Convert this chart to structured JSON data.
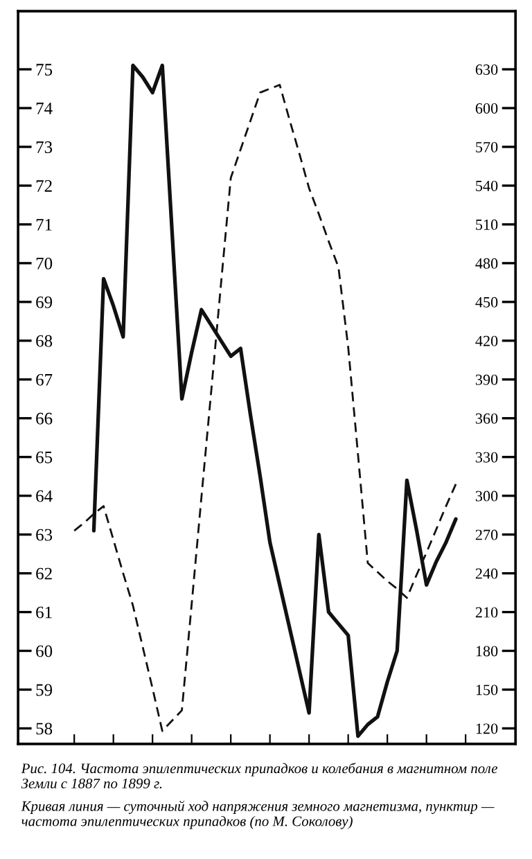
{
  "chart_data": {
    "type": "line",
    "title": "Рис. 104. Частота эпилептических припадков и колебания в магнитном поле Земли с 1887 по 1899 г.",
    "annotations": [
      "Кривая линия — суточный ход напряжения земного магнетизма, пунктир — частота эпилептических припадков (по М. Соколову)"
    ],
    "categories": [
      null,
      null,
      null,
      null,
      null,
      null,
      null,
      null,
      null,
      null,
      null,
      null,
      null,
      null,
      null,
      null,
      null,
      null,
      null,
      null,
      null,
      null,
      null,
      null,
      null,
      null,
      null,
      null,
      null,
      null,
      null,
      null,
      null,
      null,
      null,
      null,
      null,
      null,
      null,
      null,
      null
    ],
    "series": [
      {
        "color": "#111111",
        "line_style": "solid",
        "values": [
          null,
          null,
          63.1,
          69.6,
          68.9,
          68.1,
          75.1,
          74.8,
          74.4,
          75.1,
          70.8,
          66.5,
          67.7,
          68.8,
          68.4,
          68.0,
          67.6,
          67.8,
          66.1,
          64.5,
          62.8,
          61.7,
          60.6,
          59.5,
          58.4,
          63.0,
          61.0,
          60.7,
          60.4,
          57.8,
          58.1,
          58.3,
          59.2,
          60.0,
          64.4,
          63.1,
          61.7,
          62.3,
          62.8,
          63.4,
          null
        ]
      },
      {
        "color": "#111111",
        "line_style": "dashed",
        "axis": "y2",
        "values": [
          273,
          279,
          286,
          292,
          266,
          240,
          215,
          183,
          151,
          118,
          126,
          134,
          216,
          299,
          381,
          464,
          546,
          568,
          590,
          612,
          615,
          618,
          591,
          565,
          538,
          518,
          497,
          477,
          415,
          332,
          248,
          241,
          234,
          228,
          221,
          239,
          256,
          274,
          292,
          309,
          null
        ]
      }
    ],
    "ylim": [
      57.6,
      76.5
    ],
    "yticks": [
      58,
      59,
      60,
      61,
      62,
      63,
      64,
      65,
      66,
      67,
      68,
      69,
      70,
      71,
      72,
      73,
      74,
      75
    ],
    "y2lim": [
      108,
      675
    ],
    "y2ticks": [
      120,
      150,
      180,
      210,
      240,
      270,
      300,
      330,
      360,
      390,
      420,
      450,
      480,
      510,
      540,
      570,
      600,
      630
    ],
    "tick_labels": "y",
    "grid": false,
    "legend": false
  }
}
